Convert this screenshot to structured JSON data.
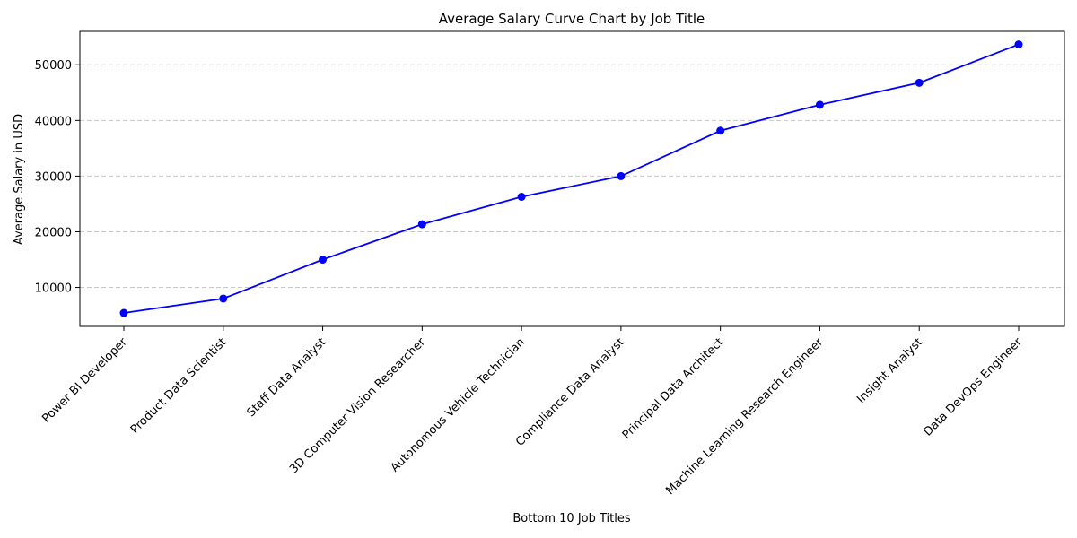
{
  "chart_data": {
    "type": "line",
    "title": "Average Salary Curve Chart by Job Title",
    "xlabel": "Bottom 10 Job Titles",
    "ylabel": "Average Salary in USD",
    "categories": [
      "Power BI Developer",
      "Product Data Scientist",
      "Staff Data Analyst",
      "3D Computer Vision Researcher",
      "Autonomous Vehicle Technician",
      "Compliance Data Analyst",
      "Principal Data Architect",
      "Machine Learning Research Engineer",
      "Insight Analyst",
      "Data DevOps Engineer"
    ],
    "series": [
      {
        "values": [
          5409,
          8000,
          15000,
          21352,
          26278,
          30000,
          38154,
          42819,
          46759,
          53654
        ],
        "color": "#0000ff",
        "marker": "circle"
      }
    ],
    "yticks": [
      10000,
      20000,
      30000,
      40000,
      50000
    ],
    "ylim": [
      3000,
      56000
    ],
    "grid": "y-dashed",
    "legend": "none"
  }
}
